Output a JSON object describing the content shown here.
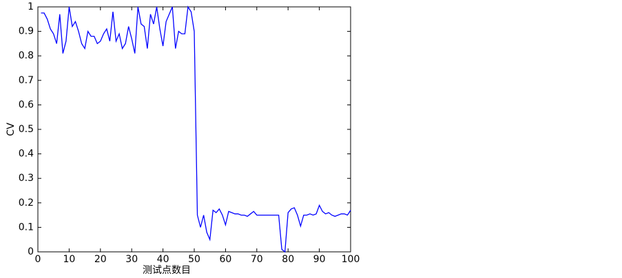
{
  "chart_data": {
    "type": "line",
    "x_label": "测试点数目",
    "y_label": "CV",
    "x": [
      1,
      2,
      3,
      4,
      5,
      6,
      7,
      8,
      9,
      10,
      11,
      12,
      13,
      14,
      15,
      16,
      17,
      18,
      19,
      20,
      21,
      22,
      23,
      24,
      25,
      26,
      27,
      28,
      29,
      30,
      31,
      32,
      33,
      34,
      35,
      36,
      37,
      38,
      39,
      40,
      41,
      42,
      43,
      44,
      45,
      46,
      47,
      48,
      49,
      50,
      51,
      52,
      53,
      54,
      55,
      56,
      57,
      58,
      59,
      60,
      61,
      62,
      63,
      64,
      65,
      66,
      67,
      68,
      69,
      70,
      71,
      72,
      73,
      74,
      75,
      76,
      77,
      78,
      79,
      80,
      81,
      82,
      83,
      84,
      85,
      86,
      87,
      88,
      89,
      90,
      91,
      92,
      93,
      94,
      95,
      96,
      97,
      98,
      99,
      100
    ],
    "series": [
      {
        "color": "#0000ff",
        "values": [
          0.975,
          0.975,
          0.95,
          0.91,
          0.89,
          0.85,
          0.97,
          0.81,
          0.86,
          1.0,
          0.92,
          0.94,
          0.9,
          0.85,
          0.83,
          0.9,
          0.88,
          0.88,
          0.85,
          0.86,
          0.89,
          0.91,
          0.86,
          0.98,
          0.86,
          0.89,
          0.83,
          0.85,
          0.92,
          0.87,
          0.81,
          1.0,
          0.93,
          0.92,
          0.83,
          0.97,
          0.93,
          1.0,
          0.91,
          0.84,
          0.94,
          0.97,
          1.0,
          0.83,
          0.9,
          0.89,
          0.89,
          1.0,
          0.98,
          0.9,
          0.15,
          0.1,
          0.15,
          0.08,
          0.05,
          0.17,
          0.16,
          0.175,
          0.15,
          0.11,
          0.165,
          0.16,
          0.155,
          0.155,
          0.15,
          0.15,
          0.145,
          0.155,
          0.165,
          0.15,
          0.15,
          0.15,
          0.15,
          0.15,
          0.15,
          0.15,
          0.15,
          0.01,
          0,
          0.16,
          0.175,
          0.18,
          0.15,
          0.105,
          0.15,
          0.15,
          0.155,
          0.15,
          0.155,
          0.19,
          0.165,
          0.155,
          0.16,
          0.15,
          0.145,
          0.15,
          0.155,
          0.155,
          0.15,
          0.17
        ]
      }
    ],
    "xlim": [
      0,
      100
    ],
    "xticks": [
      0,
      10,
      20,
      30,
      40,
      50,
      60,
      70,
      80,
      90,
      100
    ],
    "ylim": [
      0,
      1
    ],
    "yticks": [
      0,
      0.1,
      0.2,
      0.3,
      0.4,
      0.5,
      0.6,
      0.7,
      0.8,
      0.9,
      1
    ]
  }
}
